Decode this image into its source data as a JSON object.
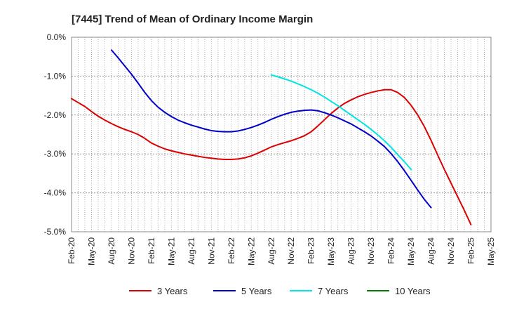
{
  "chart_data": {
    "type": "line",
    "title": "[7445]  Trend of Mean of Ordinary Income Margin",
    "xlabel": "",
    "ylabel": "",
    "x_ticks": [
      "Feb-20",
      "May-20",
      "Aug-20",
      "Nov-20",
      "Feb-21",
      "May-21",
      "Aug-21",
      "Nov-21",
      "Feb-22",
      "May-22",
      "Aug-22",
      "Nov-22",
      "Feb-23",
      "May-23",
      "Aug-23",
      "Nov-23",
      "Feb-24",
      "May-24",
      "Aug-24",
      "Nov-24",
      "Feb-25",
      "May-25"
    ],
    "y_ticks": [
      0,
      -1,
      -2,
      -3,
      -4,
      -5
    ],
    "y_tick_labels": [
      "0.0%",
      "-1.0%",
      "-2.0%",
      "-3.0%",
      "-4.0%",
      "-5.0%"
    ],
    "ylim": [
      -5,
      0
    ],
    "y_unit": "%",
    "grid": true,
    "legend_position": "bottom",
    "series": [
      {
        "name": "3 Years",
        "color": "#dd0000",
        "points": [
          [
            "Feb-20",
            -1.58
          ],
          [
            "Mar-20",
            -1.68
          ],
          [
            "Apr-20",
            -1.78
          ],
          [
            "May-20",
            -1.91
          ],
          [
            "Jun-20",
            -2.03
          ],
          [
            "Jul-20",
            -2.13
          ],
          [
            "Aug-20",
            -2.22
          ],
          [
            "Sep-20",
            -2.3
          ],
          [
            "Oct-20",
            -2.37
          ],
          [
            "Nov-20",
            -2.43
          ],
          [
            "Dec-20",
            -2.5
          ],
          [
            "Jan-21",
            -2.6
          ],
          [
            "Feb-21",
            -2.72
          ],
          [
            "Mar-21",
            -2.8
          ],
          [
            "Apr-21",
            -2.87
          ],
          [
            "May-21",
            -2.92
          ],
          [
            "Jun-21",
            -2.96
          ],
          [
            "Jul-21",
            -3.0
          ],
          [
            "Aug-21",
            -3.03
          ],
          [
            "Sep-21",
            -3.06
          ],
          [
            "Oct-21",
            -3.09
          ],
          [
            "Nov-21",
            -3.11
          ],
          [
            "Dec-21",
            -3.13
          ],
          [
            "Jan-22",
            -3.14
          ],
          [
            "Feb-22",
            -3.14
          ],
          [
            "Mar-22",
            -3.13
          ],
          [
            "Apr-22",
            -3.1
          ],
          [
            "May-22",
            -3.05
          ],
          [
            "Jun-22",
            -2.98
          ],
          [
            "Jul-22",
            -2.9
          ],
          [
            "Aug-22",
            -2.82
          ],
          [
            "Sep-22",
            -2.76
          ],
          [
            "Oct-22",
            -2.71
          ],
          [
            "Nov-22",
            -2.66
          ],
          [
            "Dec-22",
            -2.6
          ],
          [
            "Jan-23",
            -2.53
          ],
          [
            "Feb-23",
            -2.43
          ],
          [
            "Mar-23",
            -2.28
          ],
          [
            "Apr-23",
            -2.12
          ],
          [
            "May-23",
            -1.96
          ],
          [
            "Jun-23",
            -1.82
          ],
          [
            "Jul-23",
            -1.7
          ],
          [
            "Aug-23",
            -1.61
          ],
          [
            "Sep-23",
            -1.53
          ],
          [
            "Oct-23",
            -1.47
          ],
          [
            "Nov-23",
            -1.42
          ],
          [
            "Dec-23",
            -1.38
          ],
          [
            "Jan-24",
            -1.35
          ],
          [
            "Feb-24",
            -1.35
          ],
          [
            "Mar-24",
            -1.42
          ],
          [
            "Apr-24",
            -1.55
          ],
          [
            "May-24",
            -1.75
          ],
          [
            "Jun-24",
            -2.0
          ],
          [
            "Jul-24",
            -2.3
          ],
          [
            "Aug-24",
            -2.65
          ],
          [
            "Sep-24",
            -3.03
          ],
          [
            "Oct-24",
            -3.4
          ],
          [
            "Nov-24",
            -3.75
          ],
          [
            "Dec-24",
            -4.1
          ],
          [
            "Jan-25",
            -4.45
          ],
          [
            "Feb-25",
            -4.82
          ]
        ]
      },
      {
        "name": "5 Years",
        "color": "#0000cc",
        "points": [
          [
            "Feb-20",
            null
          ],
          [
            "Mar-20",
            null
          ],
          [
            "Apr-20",
            null
          ],
          [
            "May-20",
            null
          ],
          [
            "Jun-20",
            null
          ],
          [
            "Jul-20",
            null
          ],
          [
            "Aug-20",
            -0.33
          ],
          [
            "Sep-20",
            -0.53
          ],
          [
            "Oct-20",
            -0.74
          ],
          [
            "Nov-20",
            -0.95
          ],
          [
            "Dec-20",
            -1.18
          ],
          [
            "Jan-21",
            -1.42
          ],
          [
            "Feb-21",
            -1.63
          ],
          [
            "Mar-21",
            -1.8
          ],
          [
            "Apr-21",
            -1.93
          ],
          [
            "May-21",
            -2.04
          ],
          [
            "Jun-21",
            -2.13
          ],
          [
            "Jul-21",
            -2.2
          ],
          [
            "Aug-21",
            -2.26
          ],
          [
            "Sep-21",
            -2.31
          ],
          [
            "Oct-21",
            -2.36
          ],
          [
            "Nov-21",
            -2.4
          ],
          [
            "Dec-21",
            -2.42
          ],
          [
            "Jan-22",
            -2.43
          ],
          [
            "Feb-22",
            -2.43
          ],
          [
            "Mar-22",
            -2.41
          ],
          [
            "Apr-22",
            -2.37
          ],
          [
            "May-22",
            -2.32
          ],
          [
            "Jun-22",
            -2.26
          ],
          [
            "Jul-22",
            -2.19
          ],
          [
            "Aug-22",
            -2.11
          ],
          [
            "Sep-22",
            -2.04
          ],
          [
            "Oct-22",
            -1.98
          ],
          [
            "Nov-22",
            -1.93
          ],
          [
            "Dec-22",
            -1.9
          ],
          [
            "Jan-23",
            -1.88
          ],
          [
            "Feb-23",
            -1.87
          ],
          [
            "Mar-23",
            -1.89
          ],
          [
            "Apr-23",
            -1.94
          ],
          [
            "May-23",
            -2.0
          ],
          [
            "Jun-23",
            -2.07
          ],
          [
            "Jul-23",
            -2.15
          ],
          [
            "Aug-23",
            -2.23
          ],
          [
            "Sep-23",
            -2.33
          ],
          [
            "Oct-23",
            -2.43
          ],
          [
            "Nov-23",
            -2.54
          ],
          [
            "Dec-23",
            -2.67
          ],
          [
            "Jan-24",
            -2.81
          ],
          [
            "Feb-24",
            -2.99
          ],
          [
            "Mar-24",
            -3.2
          ],
          [
            "Apr-24",
            -3.43
          ],
          [
            "May-24",
            -3.68
          ],
          [
            "Jun-24",
            -3.93
          ],
          [
            "Jul-24",
            -4.17
          ],
          [
            "Aug-24",
            -4.38
          ]
        ]
      },
      {
        "name": "7 Years",
        "color": "#00e5e5",
        "points": [
          [
            "Feb-20",
            null
          ],
          [
            "Mar-20",
            null
          ],
          [
            "Apr-20",
            null
          ],
          [
            "May-20",
            null
          ],
          [
            "Jun-20",
            null
          ],
          [
            "Jul-20",
            null
          ],
          [
            "Aug-20",
            null
          ],
          [
            "Sep-20",
            null
          ],
          [
            "Oct-20",
            null
          ],
          [
            "Nov-20",
            null
          ],
          [
            "Dec-20",
            null
          ],
          [
            "Jan-21",
            null
          ],
          [
            "Feb-21",
            null
          ],
          [
            "Mar-21",
            null
          ],
          [
            "Apr-21",
            null
          ],
          [
            "May-21",
            null
          ],
          [
            "Jun-21",
            null
          ],
          [
            "Jul-21",
            null
          ],
          [
            "Aug-21",
            null
          ],
          [
            "Sep-21",
            null
          ],
          [
            "Oct-21",
            null
          ],
          [
            "Nov-21",
            null
          ],
          [
            "Dec-21",
            null
          ],
          [
            "Jan-22",
            null
          ],
          [
            "Feb-22",
            null
          ],
          [
            "Mar-22",
            null
          ],
          [
            "Apr-22",
            null
          ],
          [
            "May-22",
            null
          ],
          [
            "Jun-22",
            null
          ],
          [
            "Jul-22",
            null
          ],
          [
            "Aug-22",
            -0.97
          ],
          [
            "Sep-22",
            -1.02
          ],
          [
            "Oct-22",
            -1.07
          ],
          [
            "Nov-22",
            -1.13
          ],
          [
            "Dec-22",
            -1.2
          ],
          [
            "Jan-23",
            -1.27
          ],
          [
            "Feb-23",
            -1.35
          ],
          [
            "Mar-23",
            -1.44
          ],
          [
            "Apr-23",
            -1.54
          ],
          [
            "May-23",
            -1.65
          ],
          [
            "Jun-23",
            -1.76
          ],
          [
            "Jul-23",
            -1.88
          ],
          [
            "Aug-23",
            -2.0
          ],
          [
            "Sep-23",
            -2.12
          ],
          [
            "Oct-23",
            -2.24
          ],
          [
            "Nov-23",
            -2.37
          ],
          [
            "Dec-23",
            -2.51
          ],
          [
            "Jan-24",
            -2.66
          ],
          [
            "Feb-24",
            -2.83
          ],
          [
            "Mar-24",
            -3.02
          ],
          [
            "Apr-24",
            -3.2
          ],
          [
            "May-24",
            -3.4
          ]
        ]
      },
      {
        "name": "10 Years",
        "color": "#008000",
        "points": []
      }
    ]
  }
}
